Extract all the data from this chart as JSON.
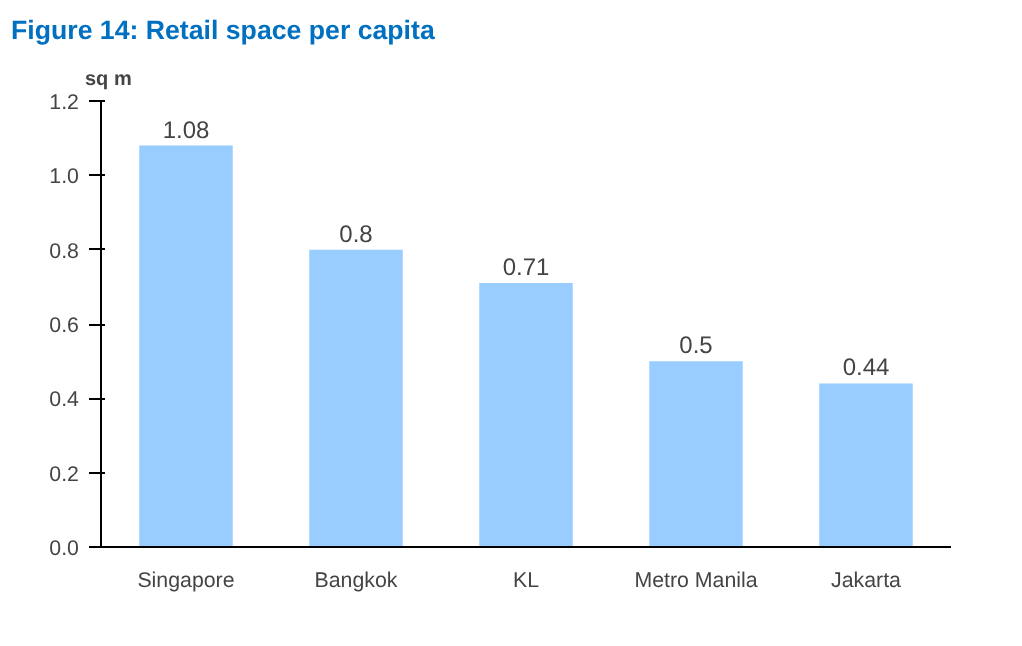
{
  "chart_data": {
    "type": "bar",
    "title": "Figure 14: Retail space per capita",
    "ylabel": "sq m",
    "categories": [
      "Singapore",
      "Bangkok",
      "KL",
      "Metro Manila",
      "Jakarta"
    ],
    "values": [
      1.08,
      0.8,
      0.71,
      0.5,
      0.44
    ],
    "color": "#99ccff",
    "ylim": [
      0,
      1.2
    ],
    "yticks": [
      {
        "value": 0,
        "label": "0.0"
      },
      {
        "value": 0.2,
        "label": "0.2"
      },
      {
        "value": 0.4,
        "label": "0.4"
      },
      {
        "value": 0.6,
        "label": "0.6"
      },
      {
        "value": 0.8,
        "label": "0.8"
      },
      {
        "value": 1.0,
        "label": "1.0"
      },
      {
        "value": 1.2,
        "label": "1.2"
      }
    ],
    "data_labels": true,
    "grid": false
  }
}
